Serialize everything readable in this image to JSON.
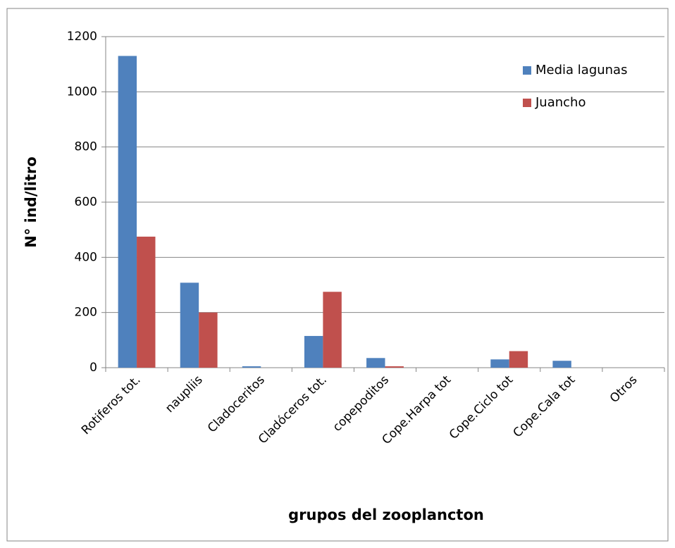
{
  "chart_data": {
    "type": "bar",
    "x_label": "grupos del zooplancton",
    "y_label": "N° ind/litro",
    "categories": [
      "Rotiferos tot.",
      "naupliis",
      "Cladoceritos",
      "Cladóceros tot.",
      "copepoditos",
      "Cope.Harpa tot",
      "Cope.Ciclo tot",
      "Cope.Cala tot",
      "Otros"
    ],
    "series": [
      {
        "name": "Media lagunas",
        "color": "#4f81bd",
        "values": [
          1130,
          308,
          5,
          115,
          35,
          0,
          30,
          25,
          0
        ]
      },
      {
        "name": "Juancho",
        "color": "#c0504d",
        "values": [
          475,
          200,
          0,
          275,
          5,
          0,
          60,
          0,
          0
        ]
      }
    ],
    "ylim": [
      0,
      1200
    ],
    "yticks": [
      0,
      200,
      400,
      600,
      800,
      1000,
      1200
    ],
    "grid": true,
    "legend": "top-right"
  }
}
